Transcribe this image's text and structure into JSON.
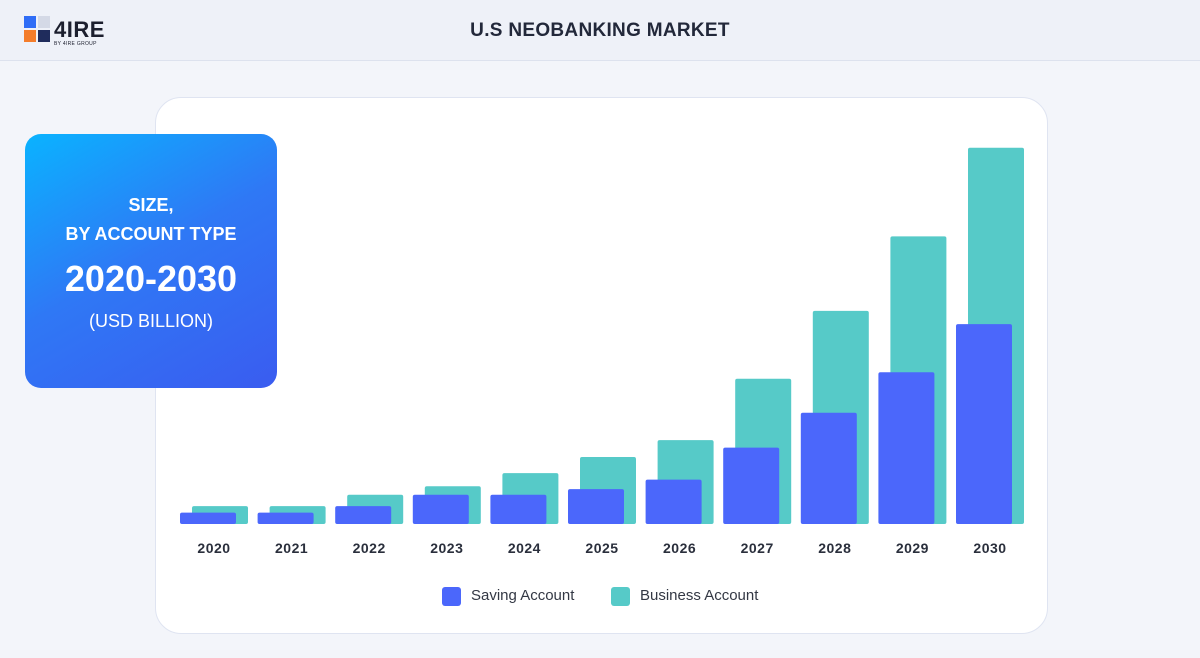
{
  "header": {
    "logo_text": "4IRE",
    "logo_subtext": "BY 4IRE GROUP",
    "title": "U.S NEOBANKING MARKET"
  },
  "info_box": {
    "line1": "SIZE,",
    "line2": "BY ACCOUNT TYPE",
    "line3": "2020-2030",
    "line4": "(USD BILLION)"
  },
  "colors": {
    "saving": "#4b67fb",
    "business": "#56cac8",
    "axis_text": "#2a2f3c"
  },
  "chart_data": {
    "type": "bar",
    "title": "U.S NEOBANKING MARKET",
    "subtitle": "SIZE, BY ACCOUNT TYPE 2020-2030 (USD BILLION)",
    "categories": [
      "2020",
      "2021",
      "2022",
      "2023",
      "2024",
      "2025",
      "2026",
      "2027",
      "2028",
      "2029",
      "2030"
    ],
    "series": [
      {
        "name": "Saving Account",
        "values": [
          12,
          12,
          19,
          31,
          31,
          37,
          47,
          81,
          118,
          161,
          212
        ]
      },
      {
        "name": "Business Account",
        "values": [
          19,
          19,
          31,
          40,
          54,
          71,
          89,
          154,
          226,
          305,
          399
        ]
      }
    ],
    "ylim": [
      0,
      420
    ],
    "grid": false,
    "legend_position": "bottom-center"
  }
}
